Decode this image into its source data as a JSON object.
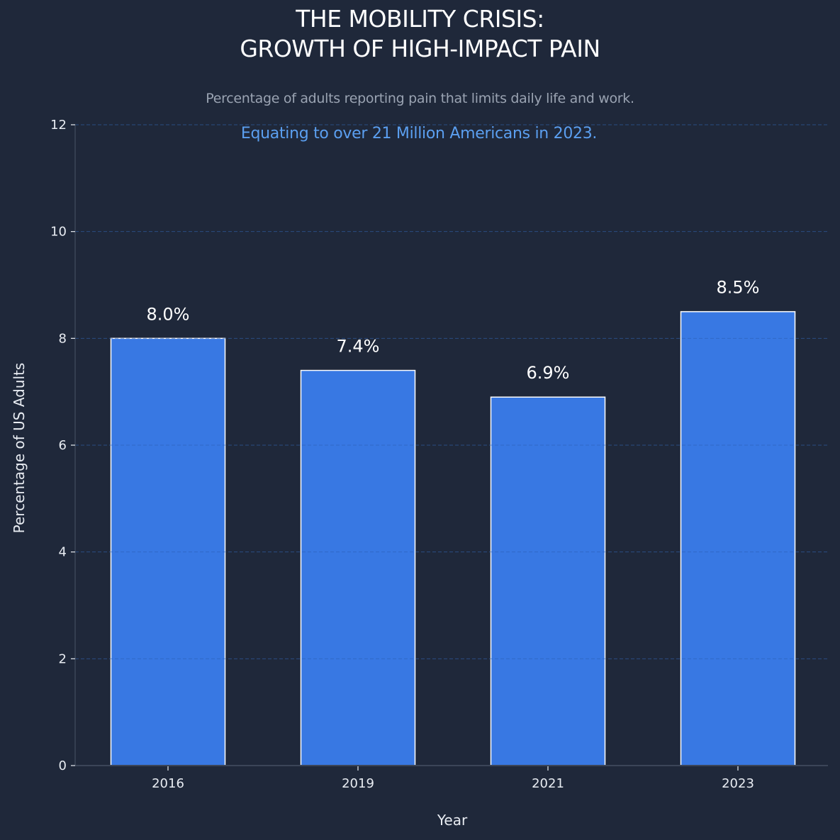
{
  "chart_data": {
    "type": "bar",
    "title_lines": [
      "THE MOBILITY CRISIS:",
      "GROWTH OF HIGH-IMPACT PAIN"
    ],
    "subtitle": "Percentage of adults reporting pain that limits daily life and work.",
    "annotation": "Equating to over 21 Million Americans in 2023.",
    "categories": [
      "2016",
      "2019",
      "2021",
      "2023"
    ],
    "values": [
      8.0,
      7.4,
      6.9,
      8.5
    ],
    "data_labels": [
      "8.0%",
      "7.4%",
      "6.9%",
      "8.5%"
    ],
    "xlabel": "Year",
    "ylabel": "Percentage of US Adults",
    "ylim": [
      0,
      12
    ],
    "yticks": [
      0,
      2,
      4,
      6,
      8,
      10,
      12
    ],
    "grid": true,
    "grid_style": "dashed",
    "colors": {
      "background": "#1f283a",
      "bar_fill": "#3878e3",
      "bar_edge": "#ffffff",
      "annotation": "#5b9ff0",
      "subtitle": "#9aa3b2",
      "text": "#e8ecf2"
    }
  }
}
